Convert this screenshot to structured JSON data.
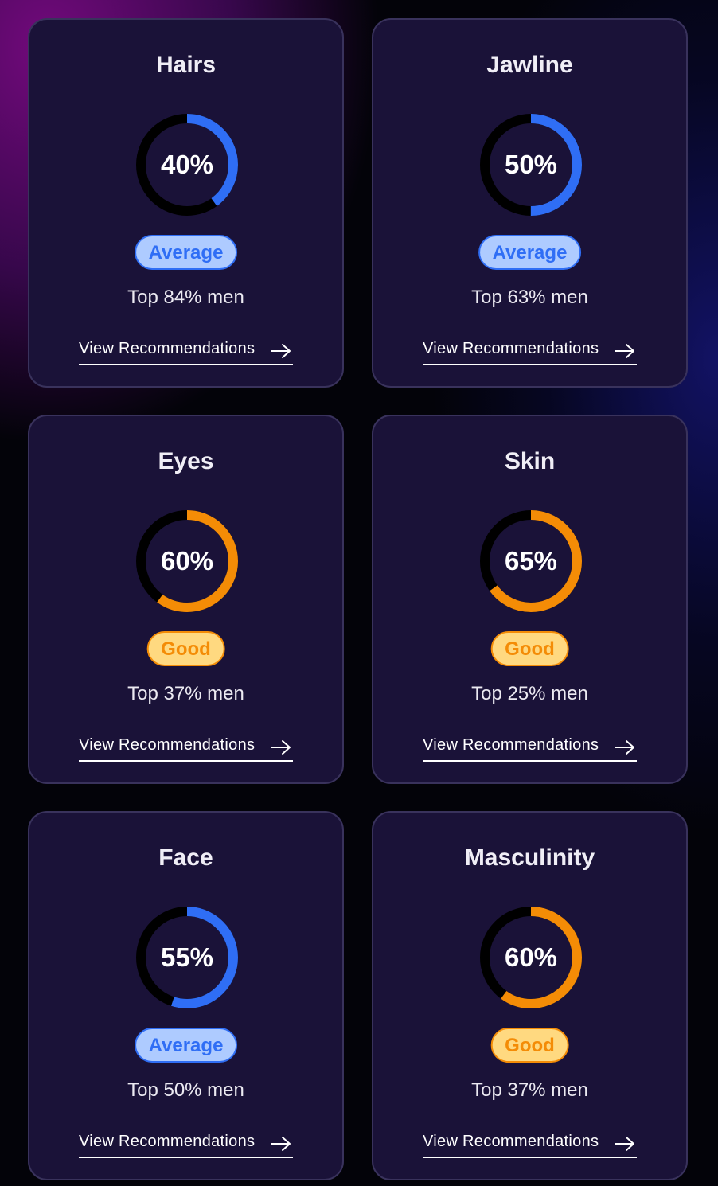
{
  "colors": {
    "average": "#2f6ef5",
    "good": "#f48c06",
    "track": "#000000"
  },
  "cards": [
    {
      "title": "Hairs",
      "percent": 40,
      "value_label": "40%",
      "rating": "Average",
      "top_text": "Top 84% men",
      "link": "View Recommendations",
      "link_icon": "arrow-right-icon"
    },
    {
      "title": "Jawline",
      "percent": 50,
      "value_label": "50%",
      "rating": "Average",
      "top_text": "Top 63% men",
      "link": "View Recommendations",
      "link_icon": "arrow-right-icon"
    },
    {
      "title": "Eyes",
      "percent": 60,
      "value_label": "60%",
      "rating": "Good",
      "top_text": "Top 37% men",
      "link": "View Recommendations",
      "link_icon": "arrow-right-icon"
    },
    {
      "title": "Skin",
      "percent": 65,
      "value_label": "65%",
      "rating": "Good",
      "top_text": "Top 25% men",
      "link": "View Recommendations",
      "link_icon": "arrow-right-icon"
    },
    {
      "title": "Face",
      "percent": 55,
      "value_label": "55%",
      "rating": "Average",
      "top_text": "Top 50% men",
      "link": "View Recommendations",
      "link_icon": "arrow-right-icon"
    },
    {
      "title": "Masculinity",
      "percent": 60,
      "value_label": "60%",
      "rating": "Good",
      "top_text": "Top 37% men",
      "link": "View Recommendations",
      "link_icon": "arrow-right-icon"
    }
  ]
}
